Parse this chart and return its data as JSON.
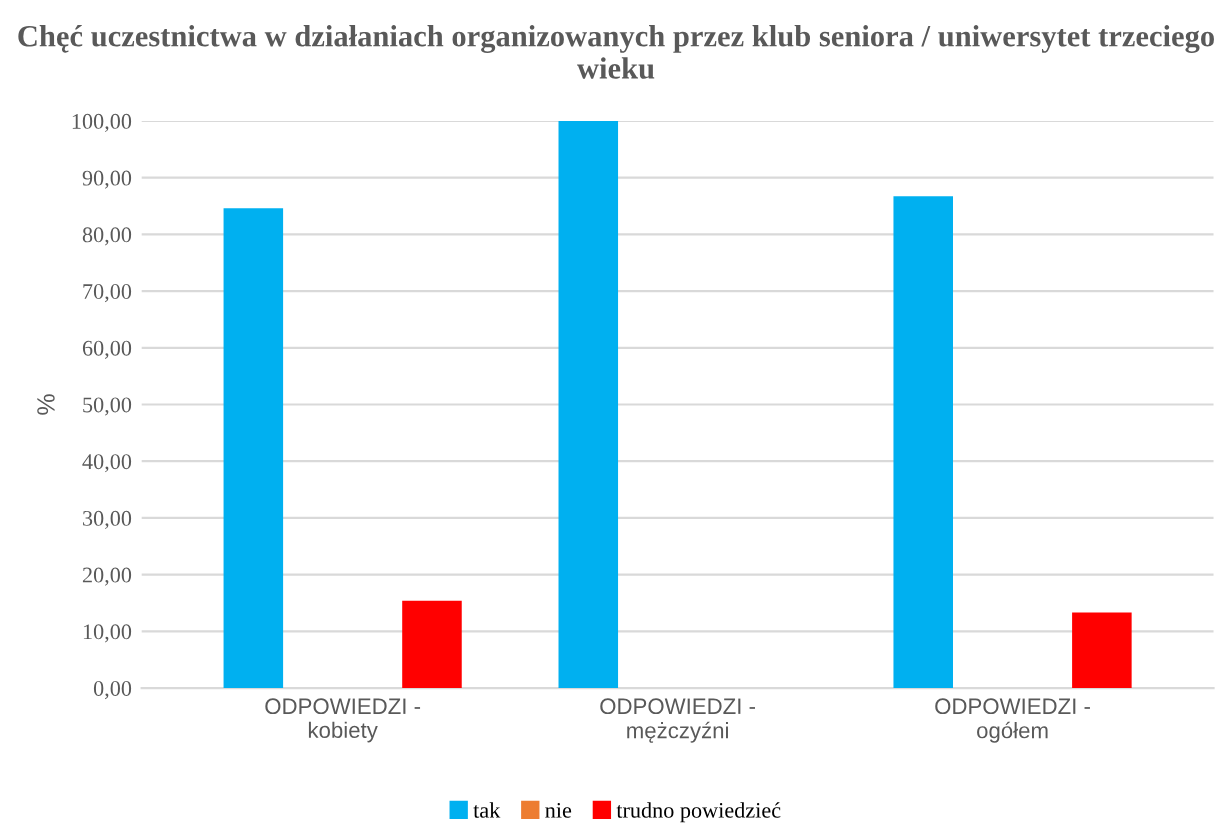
{
  "chart_data": {
    "type": "bar",
    "title": "Chęć uczestnictwa w działaniach organizowanych przez klub seniora / uniwersytet trzeciego wieku",
    "ylabel": "%",
    "categories": [
      "ODPOWIEDZI -\nkobiety",
      "ODPOWIEDZI -\nmężczyźni",
      "ODPOWIEDZI -\nogółem"
    ],
    "series": [
      {
        "name": "tak",
        "color": "#00b0f0",
        "values": [
          84.6,
          100,
          86.7
        ]
      },
      {
        "name": "nie",
        "color": "#ed7d31",
        "values": [
          0,
          0,
          0
        ]
      },
      {
        "name": "trudno powiedzieć",
        "color": "#ff0000",
        "values": [
          15.4,
          0,
          13.3
        ]
      }
    ],
    "ylim": [
      0,
      100
    ],
    "yticks": [
      {
        "value": 0,
        "label": "0,00"
      },
      {
        "value": 10,
        "label": "10,00"
      },
      {
        "value": 20,
        "label": "20,00"
      },
      {
        "value": 30,
        "label": "30,00"
      },
      {
        "value": 40,
        "label": "40,00"
      },
      {
        "value": 50,
        "label": "50,00"
      },
      {
        "value": 60,
        "label": "60,00"
      },
      {
        "value": 70,
        "label": "70,00"
      },
      {
        "value": 80,
        "label": "80,00"
      },
      {
        "value": 90,
        "label": "90,00"
      },
      {
        "value": 100,
        "label": "100,00"
      }
    ],
    "grid": "y",
    "legend": "bottom"
  }
}
